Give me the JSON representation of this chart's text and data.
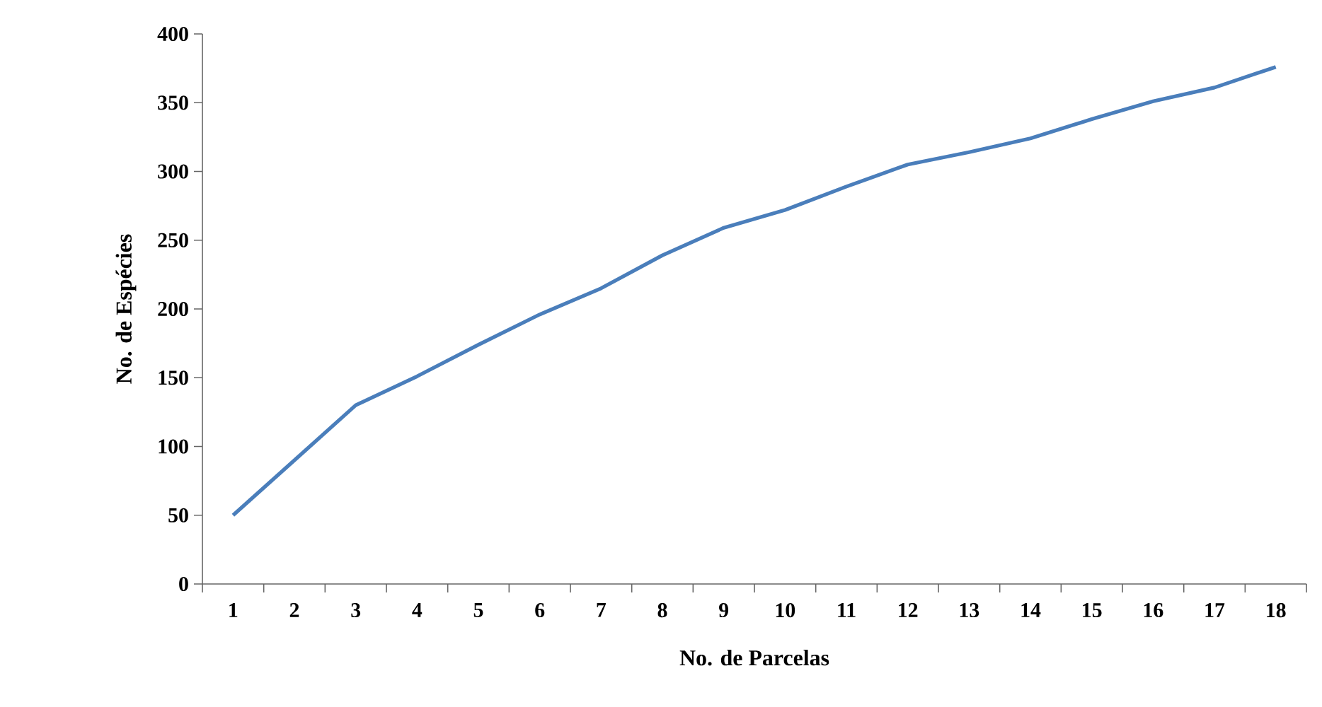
{
  "chart_data": {
    "type": "line",
    "xlabel": "No. de Parcelas",
    "ylabel": "No. de Espécies",
    "categories": [
      "1",
      "2",
      "3",
      "4",
      "5",
      "6",
      "7",
      "8",
      "9",
      "10",
      "11",
      "12",
      "13",
      "14",
      "15",
      "16",
      "17",
      "18"
    ],
    "series": [
      {
        "color": "#4a7ebb",
        "values": [
          50,
          90,
          130,
          151,
          174,
          196,
          215,
          239,
          259,
          272,
          289,
          305,
          314,
          324,
          338,
          351,
          361,
          376
        ]
      }
    ],
    "ylim": [
      0,
      400
    ],
    "yticks": [
      0,
      50,
      100,
      150,
      200,
      250,
      300,
      350,
      400
    ],
    "grid": false,
    "marker": "none",
    "line_style": "solid"
  }
}
